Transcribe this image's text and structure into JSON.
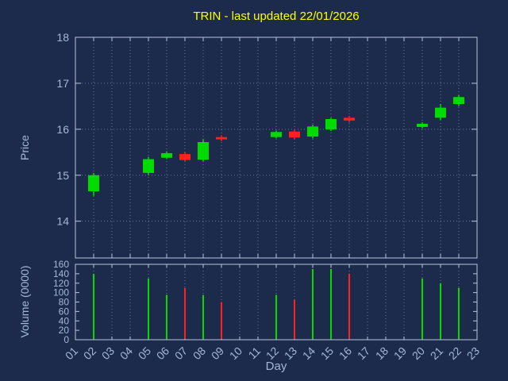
{
  "title": "TRIN - last updated 22/01/2026",
  "axes": {
    "price_label": "Price",
    "volume_label": "Volume (0000)",
    "x_label": "Day"
  },
  "colors": {
    "background": "#1c2a4b",
    "title": "#ffff00",
    "axis_text": "#a3b8d8",
    "border": "#b7c6de",
    "grid": "#667b9e",
    "up": "#00dc00",
    "down": "#ff2020"
  },
  "chart_data": [
    {
      "type": "candlestick",
      "title": "TRIN - last updated 22/01/2026",
      "xlabel": "Day",
      "ylabel": "Price",
      "x_ticks": [
        "01",
        "02",
        "03",
        "04",
        "05",
        "06",
        "07",
        "08",
        "09",
        "10",
        "11",
        "12",
        "13",
        "14",
        "15",
        "16",
        "17",
        "18",
        "19",
        "20",
        "21",
        "22",
        "23"
      ],
      "xlim": [
        1,
        23
      ],
      "ylim": [
        13.2,
        18
      ],
      "y_ticks": [
        14,
        15,
        16,
        17,
        18
      ],
      "grid": true,
      "candles": [
        {
          "day": 2,
          "open": 14.65,
          "high": 15.05,
          "low": 14.55,
          "close": 15.0
        },
        {
          "day": 5,
          "open": 15.05,
          "high": 15.4,
          "low": 15.0,
          "close": 15.35
        },
        {
          "day": 6,
          "open": 15.38,
          "high": 15.52,
          "low": 15.35,
          "close": 15.48
        },
        {
          "day": 7,
          "open": 15.46,
          "high": 15.5,
          "low": 15.3,
          "close": 15.33
        },
        {
          "day": 8,
          "open": 15.34,
          "high": 15.78,
          "low": 15.3,
          "close": 15.72
        },
        {
          "day": 9,
          "open": 15.83,
          "high": 15.87,
          "low": 15.74,
          "close": 15.78
        },
        {
          "day": 12,
          "open": 15.83,
          "high": 15.97,
          "low": 15.8,
          "close": 15.94
        },
        {
          "day": 13,
          "open": 15.95,
          "high": 15.98,
          "low": 15.79,
          "close": 15.82
        },
        {
          "day": 14,
          "open": 15.84,
          "high": 16.1,
          "low": 15.8,
          "close": 16.06
        },
        {
          "day": 15,
          "open": 16.0,
          "high": 16.25,
          "low": 15.96,
          "close": 16.22
        },
        {
          "day": 16,
          "open": 16.25,
          "high": 16.29,
          "low": 16.15,
          "close": 16.19
        },
        {
          "day": 20,
          "open": 16.05,
          "high": 16.15,
          "low": 16.02,
          "close": 16.12
        },
        {
          "day": 21,
          "open": 16.25,
          "high": 16.55,
          "low": 16.2,
          "close": 16.47
        },
        {
          "day": 22,
          "open": 16.55,
          "high": 16.74,
          "low": 16.5,
          "close": 16.7
        }
      ]
    },
    {
      "type": "bar",
      "ylabel": "Volume (0000)",
      "ylim": [
        0,
        160
      ],
      "y_ticks": [
        0,
        20,
        40,
        60,
        80,
        100,
        120,
        140,
        160
      ],
      "grid": true,
      "bars": [
        {
          "day": 2,
          "value": 140,
          "direction": "up"
        },
        {
          "day": 5,
          "value": 130,
          "direction": "up"
        },
        {
          "day": 6,
          "value": 95,
          "direction": "up"
        },
        {
          "day": 7,
          "value": 110,
          "direction": "down"
        },
        {
          "day": 8,
          "value": 95,
          "direction": "up"
        },
        {
          "day": 9,
          "value": 80,
          "direction": "down"
        },
        {
          "day": 12,
          "value": 95,
          "direction": "up"
        },
        {
          "day": 13,
          "value": 85,
          "direction": "down"
        },
        {
          "day": 14,
          "value": 150,
          "direction": "up"
        },
        {
          "day": 15,
          "value": 150,
          "direction": "up"
        },
        {
          "day": 16,
          "value": 140,
          "direction": "down"
        },
        {
          "day": 20,
          "value": 130,
          "direction": "up"
        },
        {
          "day": 21,
          "value": 120,
          "direction": "up"
        },
        {
          "day": 22,
          "value": 110,
          "direction": "up"
        }
      ]
    }
  ]
}
